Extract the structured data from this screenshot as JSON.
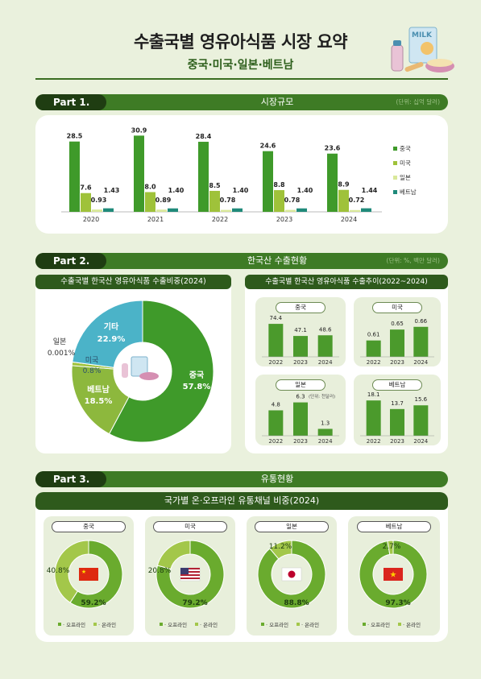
{
  "header": {
    "title": "수출국별 영유아식품 시장 요약",
    "subtitle": "중국·미국·일본·베트남",
    "illustration_label": "MILK"
  },
  "part1": {
    "tab": "Part 1.",
    "title": "시장규모",
    "unit": "(단위: 십억 달러)"
  },
  "part2": {
    "tab": "Part 2.",
    "title": "한국산 수출현황",
    "unit": "(단위: %, 백만 달러)",
    "left_heading": "수출국별 한국산 영유아식품 수출비중(2024)",
    "right_heading": "수출국별 한국산 영유아식품 수출추이(2022~2024)",
    "japan_unit": "(단위: 천달러)"
  },
  "part3": {
    "tab": "Part 3.",
    "title": "유통현황",
    "heading": "국가별 온·오프라인 유통채널 비중(2024)",
    "legend_offline": "· 오프라인",
    "legend_online": "· 온라인"
  },
  "colors": {
    "china": "#3f9a2a",
    "usa": "#9fc23a",
    "japan": "#d9e89a",
    "vietnam": "#1f8a7a",
    "other": "#4bb3c8",
    "offline": "#6aab2e",
    "online": "#a3c74a"
  },
  "chart_data": [
    {
      "type": "bar",
      "title": "시장규모",
      "categories": [
        "2020",
        "2021",
        "2022",
        "2023",
        "2024"
      ],
      "series": [
        {
          "name": "중국",
          "values": [
            28.5,
            30.9,
            28.4,
            24.6,
            23.6
          ]
        },
        {
          "name": "미국",
          "values": [
            7.6,
            8.0,
            8.5,
            8.8,
            8.9
          ]
        },
        {
          "name": "일본",
          "values": [
            0.93,
            0.89,
            0.78,
            0.78,
            0.72
          ]
        },
        {
          "name": "베트남",
          "values": [
            1.43,
            1.4,
            1.4,
            1.4,
            1.44
          ]
        }
      ],
      "value_labels": [
        [
          "28.5",
          "30.9",
          "28.4",
          "24.6",
          "23.6"
        ],
        [
          "7.6",
          "8.0",
          "8.5",
          "8.8",
          "8.9"
        ],
        [
          "0.93",
          "0.89",
          "0.78",
          "0.78",
          "0.72"
        ],
        [
          "1.43",
          "1.40",
          "1.40",
          "1.40",
          "1.44"
        ]
      ],
      "legend_position": "right",
      "ylim": [
        0,
        32
      ]
    },
    {
      "type": "pie",
      "title": "수출국별 한국산 영유아식품 수출비중(2024)",
      "slices": [
        {
          "name": "중국",
          "value": 57.8,
          "label": "57.8%"
        },
        {
          "name": "베트남",
          "value": 18.5,
          "label": "18.5%"
        },
        {
          "name": "미국",
          "value": 0.8,
          "label": "0.8%"
        },
        {
          "name": "일본",
          "value": 0.001,
          "label": "0.001%"
        },
        {
          "name": "기타",
          "value": 22.9,
          "label": "22.9%"
        }
      ]
    },
    {
      "type": "bar",
      "title": "중국",
      "categories": [
        "2022",
        "2023",
        "2024"
      ],
      "values": [
        74.4,
        47.1,
        48.6
      ],
      "labels": [
        "74.4",
        "47.1",
        "48.6"
      ],
      "ylim": [
        0,
        80
      ]
    },
    {
      "type": "bar",
      "title": "미국",
      "categories": [
        "2022",
        "2023",
        "2024"
      ],
      "values": [
        0.61,
        0.65,
        0.66
      ],
      "labels": [
        "0.61",
        "0.65",
        "0.66"
      ],
      "ylim": [
        0.55,
        0.68
      ]
    },
    {
      "type": "bar",
      "title": "일본",
      "categories": [
        "2022",
        "2023",
        "2024"
      ],
      "values": [
        4.8,
        6.3,
        1.3
      ],
      "labels": [
        "4.8",
        "6.3",
        "1.3"
      ],
      "ylim": [
        0,
        7
      ]
    },
    {
      "type": "bar",
      "title": "베트남",
      "categories": [
        "2022",
        "2023",
        "2024"
      ],
      "values": [
        18.1,
        13.7,
        15.6
      ],
      "labels": [
        "18.1",
        "13.7",
        "15.6"
      ],
      "ylim": [
        0,
        19
      ]
    },
    {
      "type": "pie",
      "title": "중국",
      "slices": [
        {
          "name": "오프라인",
          "value": 59.2,
          "label": "59.2%"
        },
        {
          "name": "온라인",
          "value": 40.8,
          "label": "40.8%"
        }
      ]
    },
    {
      "type": "pie",
      "title": "미국",
      "slices": [
        {
          "name": "오프라인",
          "value": 79.2,
          "label": "79.2%"
        },
        {
          "name": "온라인",
          "value": 20.8,
          "label": "20.8%"
        }
      ]
    },
    {
      "type": "pie",
      "title": "일본",
      "slices": [
        {
          "name": "오프라인",
          "value": 88.8,
          "label": "88.8%"
        },
        {
          "name": "온라인",
          "value": 11.2,
          "label": "11.2%"
        }
      ]
    },
    {
      "type": "pie",
      "title": "베트남",
      "slices": [
        {
          "name": "오프라인",
          "value": 97.3,
          "label": "97.3%"
        },
        {
          "name": "온라인",
          "value": 2.7,
          "label": "2.7%"
        }
      ]
    }
  ]
}
